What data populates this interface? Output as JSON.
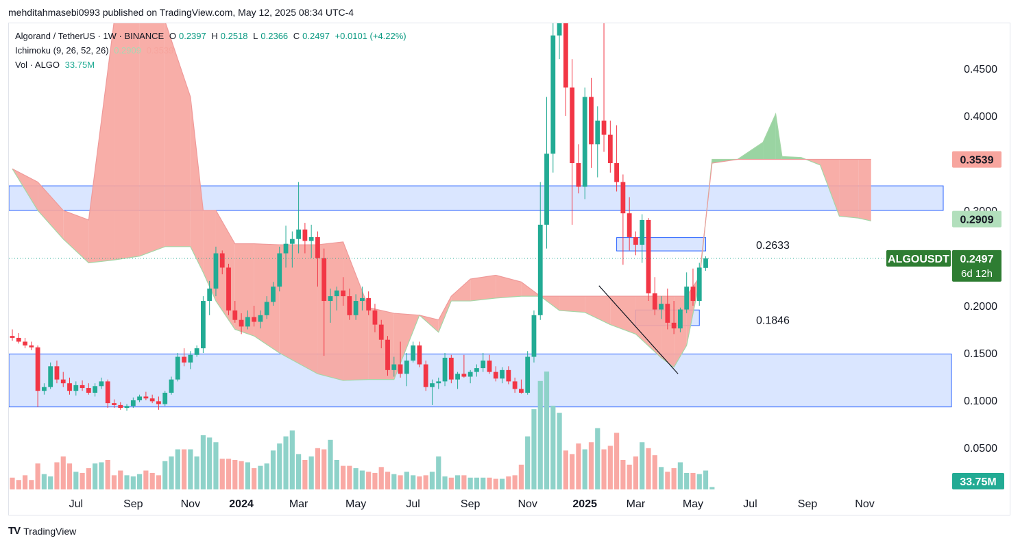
{
  "header": {
    "publish_line": "mehditahmasebi0993 published on TradingView.com, May 12, 2025 08:34 UTC-4"
  },
  "legend": {
    "symbol": "Algorand / TetherUS · 1W · BINANCE",
    "o_label": "O",
    "o_value": "0.2397",
    "h_label": "H",
    "h_value": "0.2518",
    "l_label": "L",
    "l_value": "0.2366",
    "c_label": "C",
    "c_value": "0.2497",
    "change": "+0.0101 (+4.22%)",
    "ichimoku_label": "Ichimoku (9, 26, 52, 26)",
    "ichimoku_value_a": "0.2909",
    "ichimoku_value_b": "0.3539",
    "vol_label": "Vol · ALGO",
    "vol_value": "33.75M"
  },
  "footer": {
    "brand": "TradingView",
    "logo_text": "TV"
  },
  "colors": {
    "up": "#089981",
    "down": "#f23645",
    "up_candle": "#22ab94",
    "down_candle": "#f23645",
    "cloud_red": "#f7a59e",
    "cloud_green": "#8fcf98",
    "zone": "#d4e2ff",
    "zone_border": "#2962ff"
  },
  "chart_data": {
    "type": "candlestick",
    "symbol": "ALGOUSDT",
    "timeframe": "1W",
    "y_ticks": [
      "0.4500",
      "0.4000",
      "0.3000",
      "0.2000",
      "0.1500",
      "0.1000",
      "0.0500"
    ],
    "y_tick_values": [
      0.45,
      0.4,
      0.3,
      0.2,
      0.15,
      0.1,
      0.05
    ],
    "x_ticks": [
      {
        "label": "Jul",
        "bold": false,
        "week": 10
      },
      {
        "label": "Sep",
        "bold": false,
        "week": 19
      },
      {
        "label": "Nov",
        "bold": false,
        "week": 28
      },
      {
        "label": "2024",
        "bold": true,
        "week": 36
      },
      {
        "label": "Mar",
        "bold": false,
        "week": 45
      },
      {
        "label": "May",
        "bold": false,
        "week": 54
      },
      {
        "label": "Jul",
        "bold": false,
        "week": 63
      },
      {
        "label": "Sep",
        "bold": false,
        "week": 72
      },
      {
        "label": "Nov",
        "bold": false,
        "week": 81
      },
      {
        "label": "2025",
        "bold": true,
        "week": 90
      },
      {
        "label": "Mar",
        "bold": false,
        "week": 98
      },
      {
        "label": "May",
        "bold": false,
        "week": 107
      },
      {
        "label": "Jul",
        "bold": false,
        "week": 116
      },
      {
        "label": "Sep",
        "bold": false,
        "week": 125
      },
      {
        "label": "Nov",
        "bold": false,
        "week": 134
      }
    ],
    "price_labels": {
      "kumo_b": "0.3539",
      "kumo_a": "0.2909",
      "symbol_tag": "ALGOUSDT",
      "last": "0.2497",
      "countdown": "6d 12h",
      "volume": "33.75M"
    },
    "annotations": [
      "0.2633",
      "0.1846"
    ],
    "zones": [
      {
        "from_week": 0,
        "to_week": 137,
        "low": 0.3,
        "high": 0.326
      },
      {
        "from_week": 0,
        "to_week": 138,
        "low": 0.093,
        "high": 0.149
      },
      {
        "from_week": 95,
        "to_week": 109,
        "low": 0.2575,
        "high": 0.2715
      },
      {
        "from_week": 98,
        "to_week": 108,
        "low": 0.179,
        "high": 0.1955
      }
    ],
    "trendline": {
      "from_week": 92,
      "from_price": 0.221,
      "to_week": 104,
      "to_price": 0.128
    },
    "last_price": 0.2497,
    "candles": [
      [
        0.168,
        0.175,
        0.163,
        0.166
      ],
      [
        0.166,
        0.171,
        0.16,
        0.162
      ],
      [
        0.162,
        0.166,
        0.155,
        0.158
      ],
      [
        0.158,
        0.162,
        0.153,
        0.156
      ],
      [
        0.156,
        0.158,
        0.093,
        0.11
      ],
      [
        0.11,
        0.118,
        0.106,
        0.114
      ],
      [
        0.114,
        0.14,
        0.112,
        0.136
      ],
      [
        0.136,
        0.142,
        0.118,
        0.122
      ],
      [
        0.122,
        0.13,
        0.114,
        0.118
      ],
      [
        0.118,
        0.124,
        0.106,
        0.11
      ],
      [
        0.11,
        0.12,
        0.105,
        0.116
      ],
      [
        0.116,
        0.121,
        0.11,
        0.113
      ],
      [
        0.113,
        0.118,
        0.106,
        0.108
      ],
      [
        0.108,
        0.118,
        0.104,
        0.115
      ],
      [
        0.115,
        0.124,
        0.112,
        0.12
      ],
      [
        0.12,
        0.122,
        0.092,
        0.097
      ],
      [
        0.097,
        0.101,
        0.092,
        0.095
      ],
      [
        0.095,
        0.098,
        0.09,
        0.092
      ],
      [
        0.092,
        0.096,
        0.089,
        0.094
      ],
      [
        0.094,
        0.103,
        0.092,
        0.1
      ],
      [
        0.1,
        0.106,
        0.098,
        0.104
      ],
      [
        0.104,
        0.109,
        0.1,
        0.102
      ],
      [
        0.102,
        0.106,
        0.097,
        0.099
      ],
      [
        0.099,
        0.104,
        0.09,
        0.096
      ],
      [
        0.096,
        0.11,
        0.094,
        0.108
      ],
      [
        0.108,
        0.125,
        0.106,
        0.122
      ],
      [
        0.122,
        0.15,
        0.12,
        0.146
      ],
      [
        0.146,
        0.155,
        0.136,
        0.14
      ],
      [
        0.14,
        0.152,
        0.133,
        0.148
      ],
      [
        0.148,
        0.158,
        0.146,
        0.155
      ],
      [
        0.155,
        0.21,
        0.15,
        0.205
      ],
      [
        0.205,
        0.226,
        0.19,
        0.218
      ],
      [
        0.218,
        0.262,
        0.21,
        0.255
      ],
      [
        0.255,
        0.258,
        0.233,
        0.24
      ],
      [
        0.24,
        0.244,
        0.19,
        0.195
      ],
      [
        0.195,
        0.205,
        0.182,
        0.185
      ],
      [
        0.185,
        0.192,
        0.17,
        0.178
      ],
      [
        0.178,
        0.195,
        0.175,
        0.188
      ],
      [
        0.188,
        0.2,
        0.178,
        0.183
      ],
      [
        0.183,
        0.195,
        0.176,
        0.19
      ],
      [
        0.19,
        0.21,
        0.186,
        0.204
      ],
      [
        0.204,
        0.225,
        0.2,
        0.22
      ],
      [
        0.22,
        0.262,
        0.215,
        0.255
      ],
      [
        0.255,
        0.284,
        0.24,
        0.265
      ],
      [
        0.265,
        0.278,
        0.24,
        0.27
      ],
      [
        0.27,
        0.33,
        0.255,
        0.28
      ],
      [
        0.28,
        0.287,
        0.255,
        0.268
      ],
      [
        0.268,
        0.285,
        0.25,
        0.272
      ],
      [
        0.272,
        0.278,
        0.22,
        0.25
      ],
      [
        0.25,
        0.26,
        0.147,
        0.205
      ],
      [
        0.205,
        0.218,
        0.182,
        0.21
      ],
      [
        0.21,
        0.22,
        0.195,
        0.216
      ],
      [
        0.216,
        0.23,
        0.2,
        0.21
      ],
      [
        0.21,
        0.218,
        0.185,
        0.19
      ],
      [
        0.19,
        0.212,
        0.185,
        0.205
      ],
      [
        0.205,
        0.22,
        0.195,
        0.208
      ],
      [
        0.208,
        0.215,
        0.19,
        0.195
      ],
      [
        0.195,
        0.202,
        0.172,
        0.18
      ],
      [
        0.18,
        0.185,
        0.155,
        0.164
      ],
      [
        0.164,
        0.168,
        0.126,
        0.132
      ],
      [
        0.132,
        0.146,
        0.125,
        0.138
      ],
      [
        0.138,
        0.162,
        0.124,
        0.128
      ],
      [
        0.128,
        0.15,
        0.115,
        0.142
      ],
      [
        0.142,
        0.162,
        0.14,
        0.158
      ],
      [
        0.158,
        0.162,
        0.135,
        0.138
      ],
      [
        0.138,
        0.142,
        0.11,
        0.114
      ],
      [
        0.114,
        0.122,
        0.095,
        0.118
      ],
      [
        0.118,
        0.124,
        0.112,
        0.12
      ],
      [
        0.12,
        0.15,
        0.115,
        0.145
      ],
      [
        0.145,
        0.148,
        0.118,
        0.122
      ],
      [
        0.122,
        0.13,
        0.112,
        0.128
      ],
      [
        0.128,
        0.148,
        0.124,
        0.125
      ],
      [
        0.125,
        0.132,
        0.118,
        0.13
      ],
      [
        0.13,
        0.138,
        0.125,
        0.134
      ],
      [
        0.134,
        0.15,
        0.13,
        0.142
      ],
      [
        0.142,
        0.148,
        0.128,
        0.13
      ],
      [
        0.13,
        0.136,
        0.12,
        0.123
      ],
      [
        0.123,
        0.135,
        0.118,
        0.132
      ],
      [
        0.132,
        0.136,
        0.117,
        0.12
      ],
      [
        0.12,
        0.124,
        0.108,
        0.112
      ],
      [
        0.112,
        0.122,
        0.107,
        0.108
      ],
      [
        0.108,
        0.152,
        0.106,
        0.146
      ],
      [
        0.146,
        0.195,
        0.14,
        0.19
      ],
      [
        0.19,
        0.33,
        0.185,
        0.285
      ],
      [
        0.285,
        0.42,
        0.26,
        0.36
      ],
      [
        0.36,
        0.5,
        0.34,
        0.485
      ],
      [
        0.485,
        0.51,
        0.46,
        0.5
      ],
      [
        0.5,
        0.505,
        0.4,
        0.43
      ],
      [
        0.43,
        0.46,
        0.285,
        0.35
      ],
      [
        0.35,
        0.37,
        0.318,
        0.325
      ],
      [
        0.325,
        0.43,
        0.312,
        0.42
      ],
      [
        0.42,
        0.44,
        0.345,
        0.37
      ],
      [
        0.37,
        0.41,
        0.335,
        0.395
      ],
      [
        0.395,
        0.5,
        0.362,
        0.38
      ],
      [
        0.38,
        0.395,
        0.34,
        0.35
      ],
      [
        0.35,
        0.39,
        0.32,
        0.33
      ],
      [
        0.33,
        0.338,
        0.243,
        0.297
      ],
      [
        0.297,
        0.314,
        0.258,
        0.272
      ],
      [
        0.272,
        0.278,
        0.253,
        0.264
      ],
      [
        0.264,
        0.296,
        0.245,
        0.29
      ],
      [
        0.29,
        0.292,
        0.205,
        0.213
      ],
      [
        0.213,
        0.23,
        0.19,
        0.196
      ],
      [
        0.196,
        0.21,
        0.186,
        0.202
      ],
      [
        0.202,
        0.218,
        0.175,
        0.182
      ],
      [
        0.182,
        0.205,
        0.17,
        0.176
      ],
      [
        0.176,
        0.198,
        0.172,
        0.196
      ],
      [
        0.196,
        0.235,
        0.192,
        0.22
      ],
      [
        0.22,
        0.239,
        0.2,
        0.205
      ],
      [
        0.205,
        0.245,
        0.2,
        0.24
      ],
      [
        0.2397,
        0.2518,
        0.2366,
        0.2497
      ]
    ],
    "volume_ratio": [
      0.1,
      0.08,
      0.12,
      0.08,
      0.22,
      0.13,
      0.11,
      0.23,
      0.28,
      0.22,
      0.15,
      0.14,
      0.18,
      0.22,
      0.23,
      0.25,
      0.12,
      0.16,
      0.12,
      0.11,
      0.13,
      0.16,
      0.14,
      0.12,
      0.24,
      0.28,
      0.34,
      0.34,
      0.34,
      0.28,
      0.46,
      0.44,
      0.4,
      0.26,
      0.26,
      0.25,
      0.24,
      0.23,
      0.18,
      0.2,
      0.22,
      0.33,
      0.39,
      0.45,
      0.5,
      0.3,
      0.25,
      0.28,
      0.35,
      0.34,
      0.42,
      0.25,
      0.2,
      0.2,
      0.18,
      0.16,
      0.15,
      0.14,
      0.19,
      0.15,
      0.13,
      0.12,
      0.15,
      0.12,
      0.11,
      0.12,
      0.15,
      0.28,
      0.11,
      0.1,
      0.12,
      0.12,
      0.1,
      0.1,
      0.1,
      0.1,
      0.09,
      0.09,
      0.11,
      0.12,
      0.21,
      0.45,
      0.68,
      0.92,
      1.0,
      0.71,
      0.65,
      0.33,
      0.3,
      0.39,
      0.34,
      0.4,
      0.52,
      0.34,
      0.37,
      0.48,
      0.25,
      0.21,
      0.28,
      0.4,
      0.35,
      0.29,
      0.19,
      0.15,
      0.18,
      0.23,
      0.14,
      0.14,
      0.13,
      0.16,
      0.02
    ],
    "ichimoku_cloud": [
      {
        "w": 0,
        "a": 0.344,
        "b": 0.344
      },
      {
        "w": 4,
        "a": 0.3,
        "b": 0.33
      },
      {
        "w": 8,
        "a": 0.27,
        "b": 0.3
      },
      {
        "w": 12,
        "a": 0.245,
        "b": 0.29
      },
      {
        "w": 16,
        "a": 0.248,
        "b": 0.5
      },
      {
        "w": 20,
        "a": 0.252,
        "b": 0.5
      },
      {
        "w": 24,
        "a": 0.262,
        "b": 0.5
      },
      {
        "w": 28,
        "a": 0.262,
        "b": 0.42
      },
      {
        "w": 30,
        "a": 0.235,
        "b": 0.3
      },
      {
        "w": 32,
        "a": 0.205,
        "b": 0.3
      },
      {
        "w": 35,
        "a": 0.175,
        "b": 0.265
      },
      {
        "w": 38,
        "a": 0.168,
        "b": 0.265
      },
      {
        "w": 42,
        "a": 0.15,
        "b": 0.264
      },
      {
        "w": 48,
        "a": 0.128,
        "b": 0.264
      },
      {
        "w": 52,
        "a": 0.121,
        "b": 0.267
      },
      {
        "w": 56,
        "a": 0.122,
        "b": 0.198
      },
      {
        "w": 60,
        "a": 0.122,
        "b": 0.192
      },
      {
        "w": 64,
        "a": 0.19,
        "b": 0.19
      },
      {
        "w": 67,
        "a": 0.172,
        "b": 0.185
      },
      {
        "w": 69,
        "a": 0.205,
        "b": 0.21
      },
      {
        "w": 72,
        "a": 0.205,
        "b": 0.228
      },
      {
        "w": 76,
        "a": 0.208,
        "b": 0.232
      },
      {
        "w": 80,
        "a": 0.21,
        "b": 0.225
      },
      {
        "w": 83,
        "a": 0.21,
        "b": 0.21
      },
      {
        "w": 86,
        "a": 0.195,
        "b": 0.21
      },
      {
        "w": 90,
        "a": 0.193,
        "b": 0.21
      },
      {
        "w": 94,
        "a": 0.18,
        "b": 0.21
      },
      {
        "w": 98,
        "a": 0.17,
        "b": 0.21
      },
      {
        "w": 102,
        "a": 0.145,
        "b": 0.21
      },
      {
        "w": 104,
        "a": 0.135,
        "b": 0.21
      },
      {
        "w": 106,
        "a": 0.158,
        "b": 0.21
      },
      {
        "w": 108,
        "a": 0.225,
        "b": 0.23
      },
      {
        "w": 110,
        "a": 0.354,
        "b": 0.35
      },
      {
        "w": 114,
        "a": 0.354,
        "b": 0.354
      },
      {
        "w": 118,
        "a": 0.372,
        "b": 0.354
      },
      {
        "w": 120,
        "a": 0.402,
        "b": 0.354
      },
      {
        "w": 121,
        "a": 0.357,
        "b": 0.354
      },
      {
        "w": 124,
        "a": 0.356,
        "b": 0.354
      },
      {
        "w": 127,
        "a": 0.348,
        "b": 0.354
      },
      {
        "w": 130,
        "a": 0.294,
        "b": 0.354
      },
      {
        "w": 133,
        "a": 0.292,
        "b": 0.354
      },
      {
        "w": 135,
        "a": 0.289,
        "b": 0.354
      }
    ]
  }
}
